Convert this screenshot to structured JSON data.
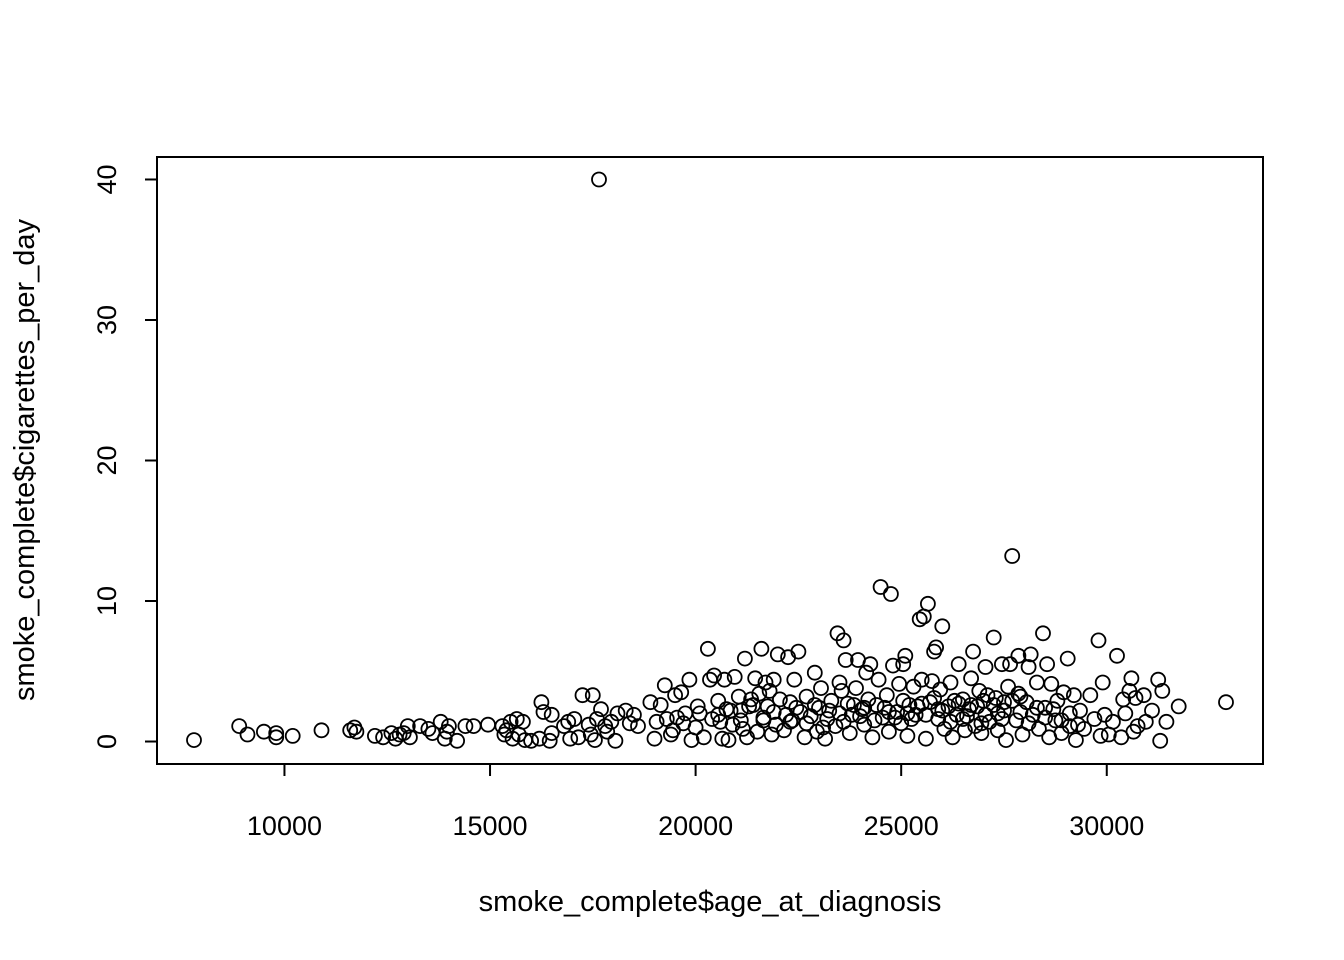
{
  "chart_data": {
    "type": "scatter",
    "title": "",
    "xlabel": "smoke_complete$age_at_diagnosis",
    "ylabel": "smoke_complete$cigarettes_per_day",
    "xlim": [
      6900,
      33800
    ],
    "ylim": [
      -1.6,
      41.6
    ],
    "xticks": [
      10000,
      15000,
      20000,
      25000,
      30000
    ],
    "xtick_labels": [
      "10000",
      "15000",
      "20000",
      "25000",
      "30000"
    ],
    "yticks": [
      0,
      10,
      20,
      30,
      40
    ],
    "ytick_labels": [
      "0",
      "10",
      "20",
      "30",
      "40"
    ],
    "grid": false,
    "legend": "none",
    "marker": "open-circle",
    "points": [
      [
        7800,
        0.1
      ],
      [
        8900,
        1.1
      ],
      [
        9100,
        0.5
      ],
      [
        9500,
        0.7
      ],
      [
        9800,
        0.3
      ],
      [
        9800,
        0.6
      ],
      [
        10200,
        0.4
      ],
      [
        10900,
        0.8
      ],
      [
        11600,
        0.8
      ],
      [
        11700,
        1.0
      ],
      [
        11750,
        0.7
      ],
      [
        12200,
        0.4
      ],
      [
        12400,
        0.3
      ],
      [
        12600,
        0.6
      ],
      [
        12700,
        0.2
      ],
      [
        12800,
        0.5
      ],
      [
        12900,
        0.6
      ],
      [
        13000,
        1.1
      ],
      [
        13050,
        0.3
      ],
      [
        13300,
        1.1
      ],
      [
        13500,
        0.9
      ],
      [
        13600,
        0.6
      ],
      [
        13800,
        1.4
      ],
      [
        13900,
        0.2
      ],
      [
        13950,
        0.7
      ],
      [
        14000,
        1.1
      ],
      [
        14200,
        0.05
      ],
      [
        14400,
        1.1
      ],
      [
        14600,
        1.1
      ],
      [
        14950,
        1.2
      ],
      [
        15300,
        1.1
      ],
      [
        15350,
        0.5
      ],
      [
        15400,
        0.8
      ],
      [
        15500,
        1.4
      ],
      [
        15550,
        0.2
      ],
      [
        15650,
        1.6
      ],
      [
        15700,
        0.5
      ],
      [
        15800,
        1.4
      ],
      [
        15850,
        0.1
      ],
      [
        16000,
        0.05
      ],
      [
        16200,
        0.2
      ],
      [
        16250,
        2.8
      ],
      [
        16300,
        2.1
      ],
      [
        16450,
        0.05
      ],
      [
        16500,
        1.9
      ],
      [
        16500,
        0.6
      ],
      [
        16800,
        1.1
      ],
      [
        16900,
        1.4
      ],
      [
        16950,
        0.2
      ],
      [
        17050,
        1.6
      ],
      [
        17150,
        0.3
      ],
      [
        17250,
        3.3
      ],
      [
        17400,
        1.2
      ],
      [
        17450,
        0.5
      ],
      [
        17500,
        3.3
      ],
      [
        17550,
        0.1
      ],
      [
        17600,
        1.6
      ],
      [
        17650,
        40.0
      ],
      [
        17700,
        2.3
      ],
      [
        17800,
        1.1
      ],
      [
        17850,
        0.7
      ],
      [
        17950,
        1.4
      ],
      [
        18050,
        0.05
      ],
      [
        18100,
        2.0
      ],
      [
        18300,
        2.2
      ],
      [
        18400,
        1.3
      ],
      [
        18500,
        1.9
      ],
      [
        18600,
        1.1
      ],
      [
        18900,
        2.8
      ],
      [
        19000,
        0.2
      ],
      [
        19050,
        1.4
      ],
      [
        19150,
        2.6
      ],
      [
        19250,
        4.0
      ],
      [
        19300,
        1.6
      ],
      [
        19400,
        0.5
      ],
      [
        19450,
        0.8
      ],
      [
        19500,
        3.3
      ],
      [
        19550,
        1.7
      ],
      [
        19650,
        3.5
      ],
      [
        19700,
        1.3
      ],
      [
        19750,
        2.0
      ],
      [
        19850,
        4.4
      ],
      [
        19900,
        0.1
      ],
      [
        20000,
        1.0
      ],
      [
        20050,
        2.5
      ],
      [
        20100,
        2.0
      ],
      [
        20200,
        0.3
      ],
      [
        20300,
        6.6
      ],
      [
        20350,
        4.4
      ],
      [
        20400,
        1.6
      ],
      [
        20450,
        4.7
      ],
      [
        20550,
        2.9
      ],
      [
        20600,
        1.4
      ],
      [
        20650,
        0.2
      ],
      [
        20700,
        4.4
      ],
      [
        20750,
        2.3
      ],
      [
        20800,
        0.1
      ],
      [
        20900,
        1.2
      ],
      [
        20950,
        4.6
      ],
      [
        21050,
        3.2
      ],
      [
        21100,
        2.2
      ],
      [
        21150,
        0.9
      ],
      [
        21200,
        5.9
      ],
      [
        21250,
        0.3
      ],
      [
        21300,
        2.5
      ],
      [
        21350,
        3.0
      ],
      [
        21450,
        4.5
      ],
      [
        21500,
        0.7
      ],
      [
        21550,
        3.4
      ],
      [
        21600,
        6.6
      ],
      [
        21650,
        1.5
      ],
      [
        21700,
        4.2
      ],
      [
        21750,
        2.5
      ],
      [
        21800,
        3.6
      ],
      [
        21850,
        0.5
      ],
      [
        21900,
        4.4
      ],
      [
        21950,
        1.2
      ],
      [
        22000,
        6.2
      ],
      [
        22050,
        3.0
      ],
      [
        22150,
        0.8
      ],
      [
        22250,
        6.0
      ],
      [
        22300,
        2.8
      ],
      [
        22350,
        1.5
      ],
      [
        22400,
        4.4
      ],
      [
        22500,
        6.4
      ],
      [
        22550,
        2.1
      ],
      [
        22650,
        0.3
      ],
      [
        22700,
        3.2
      ],
      [
        22800,
        1.8
      ],
      [
        22900,
        4.9
      ],
      [
        22950,
        0.7
      ],
      [
        23000,
        2.4
      ],
      [
        23050,
        3.8
      ],
      [
        23150,
        0.2
      ],
      [
        23200,
        1.6
      ],
      [
        23300,
        2.9
      ],
      [
        23400,
        1.1
      ],
      [
        23450,
        7.7
      ],
      [
        23500,
        4.2
      ],
      [
        23550,
        3.6
      ],
      [
        23600,
        7.2
      ],
      [
        23650,
        5.8
      ],
      [
        23700,
        2.7
      ],
      [
        23750,
        0.6
      ],
      [
        23800,
        1.9
      ],
      [
        23900,
        3.8
      ],
      [
        23950,
        5.8
      ],
      [
        24050,
        2.3
      ],
      [
        24100,
        1.2
      ],
      [
        24150,
        4.9
      ],
      [
        24250,
        5.5
      ],
      [
        24300,
        0.3
      ],
      [
        24400,
        2.6
      ],
      [
        24450,
        4.4
      ],
      [
        24500,
        11.0
      ],
      [
        24550,
        1.7
      ],
      [
        24650,
        3.3
      ],
      [
        24700,
        0.7
      ],
      [
        24750,
        10.5
      ],
      [
        24800,
        5.4
      ],
      [
        24900,
        2.1
      ],
      [
        24950,
        4.1
      ],
      [
        25000,
        1.3
      ],
      [
        25050,
        5.5
      ],
      [
        25100,
        6.1
      ],
      [
        25150,
        0.4
      ],
      [
        25200,
        2.6
      ],
      [
        25300,
        3.9
      ],
      [
        25350,
        1.9
      ],
      [
        25450,
        8.7
      ],
      [
        25500,
        4.4
      ],
      [
        25550,
        8.9
      ],
      [
        25600,
        0.2
      ],
      [
        25650,
        9.8
      ],
      [
        25700,
        2.8
      ],
      [
        25750,
        4.3
      ],
      [
        25800,
        6.4
      ],
      [
        25850,
        6.7
      ],
      [
        25900,
        1.6
      ],
      [
        25950,
        3.7
      ],
      [
        26000,
        8.2
      ],
      [
        26050,
        0.9
      ],
      [
        26150,
        2.5
      ],
      [
        26200,
        4.2
      ],
      [
        26250,
        0.3
      ],
      [
        26350,
        1.9
      ],
      [
        26400,
        5.5
      ],
      [
        26500,
        3.0
      ],
      [
        26550,
        0.8
      ],
      [
        26650,
        2.3
      ],
      [
        26700,
        4.5
      ],
      [
        26750,
        6.4
      ],
      [
        26800,
        1.1
      ],
      [
        26900,
        3.6
      ],
      [
        26950,
        0.6
      ],
      [
        27000,
        2.9
      ],
      [
        27050,
        5.3
      ],
      [
        27150,
        1.4
      ],
      [
        27250,
        7.4
      ],
      [
        27300,
        3.1
      ],
      [
        27350,
        0.8
      ],
      [
        27450,
        5.5
      ],
      [
        27500,
        2.2
      ],
      [
        27550,
        0.1
      ],
      [
        27600,
        3.9
      ],
      [
        27650,
        5.5
      ],
      [
        27700,
        13.2
      ],
      [
        27800,
        1.5
      ],
      [
        27850,
        6.1
      ],
      [
        27900,
        3.2
      ],
      [
        27950,
        0.5
      ],
      [
        28050,
        2.8
      ],
      [
        28100,
        5.3
      ],
      [
        28150,
        6.2
      ],
      [
        28200,
        1.9
      ],
      [
        28300,
        4.2
      ],
      [
        28350,
        0.9
      ],
      [
        28450,
        7.7
      ],
      [
        28500,
        2.4
      ],
      [
        28550,
        5.5
      ],
      [
        28600,
        0.3
      ],
      [
        28650,
        4.1
      ],
      [
        28750,
        1.5
      ],
      [
        28800,
        2.9
      ],
      [
        28900,
        0.6
      ],
      [
        28950,
        3.5
      ],
      [
        29050,
        5.9
      ],
      [
        29100,
        1.1
      ],
      [
        29200,
        3.3
      ],
      [
        29250,
        0.1
      ],
      [
        29350,
        2.2
      ],
      [
        29450,
        0.9
      ],
      [
        29600,
        3.3
      ],
      [
        29700,
        1.6
      ],
      [
        29800,
        7.2
      ],
      [
        29850,
        0.4
      ],
      [
        29900,
        4.2
      ],
      [
        29950,
        1.9
      ],
      [
        30050,
        0.5
      ],
      [
        30150,
        1.4
      ],
      [
        30250,
        6.1
      ],
      [
        30350,
        0.3
      ],
      [
        30400,
        3.0
      ],
      [
        30450,
        2.0
      ],
      [
        30550,
        3.6
      ],
      [
        30600,
        4.5
      ],
      [
        30650,
        0.7
      ],
      [
        30700,
        3.1
      ],
      [
        30750,
        1.1
      ],
      [
        30900,
        3.3
      ],
      [
        30950,
        1.4
      ],
      [
        31100,
        2.2
      ],
      [
        31250,
        4.4
      ],
      [
        31300,
        0.05
      ],
      [
        31350,
        3.6
      ],
      [
        31450,
        1.4
      ],
      [
        31750,
        2.5
      ],
      [
        32900,
        2.8
      ],
      [
        23100,
        1.0
      ],
      [
        23250,
        2.2
      ],
      [
        23600,
        1.4
      ],
      [
        23850,
        2.6
      ],
      [
        24000,
        1.8
      ],
      [
        24200,
        3.0
      ],
      [
        24350,
        1.5
      ],
      [
        24600,
        2.4
      ],
      [
        24850,
        1.7
      ],
      [
        25050,
        2.9
      ],
      [
        25250,
        1.6
      ],
      [
        25400,
        2.5
      ],
      [
        25600,
        1.9
      ],
      [
        25800,
        3.1
      ],
      [
        26000,
        2.2
      ],
      [
        26200,
        1.4
      ],
      [
        26400,
        2.7
      ],
      [
        26600,
        1.8
      ],
      [
        26850,
        2.5
      ],
      [
        27050,
        1.9
      ],
      [
        27250,
        2.6
      ],
      [
        27450,
        1.6
      ],
      [
        27700,
        2.9
      ],
      [
        27900,
        2.1
      ],
      [
        28100,
        1.3
      ],
      [
        28300,
        2.4
      ],
      [
        28500,
        1.7
      ],
      [
        28700,
        2.3
      ],
      [
        28900,
        1.5
      ],
      [
        29100,
        2.0
      ],
      [
        29300,
        1.2
      ],
      [
        22200,
        1.9
      ],
      [
        22450,
        2.4
      ],
      [
        22700,
        1.3
      ],
      [
        21900,
        2.1
      ],
      [
        21650,
        1.7
      ],
      [
        21400,
        2.6
      ],
      [
        21100,
        1.5
      ],
      [
        20850,
        2.2
      ],
      [
        20550,
        1.9
      ],
      [
        25150,
        2.0
      ],
      [
        25500,
        2.7
      ],
      [
        25900,
        2.3
      ],
      [
        26300,
        2.9
      ],
      [
        26700,
        2.6
      ],
      [
        27100,
        3.3
      ],
      [
        27500,
        2.8
      ],
      [
        27850,
        3.4
      ],
      [
        24700,
        2.1
      ],
      [
        24100,
        2.4
      ],
      [
        23500,
        2.0
      ],
      [
        22900,
        2.6
      ],
      [
        22300,
        1.4
      ],
      [
        26500,
        1.6
      ],
      [
        26950,
        1.3
      ],
      [
        27350,
        2.0
      ]
    ]
  }
}
